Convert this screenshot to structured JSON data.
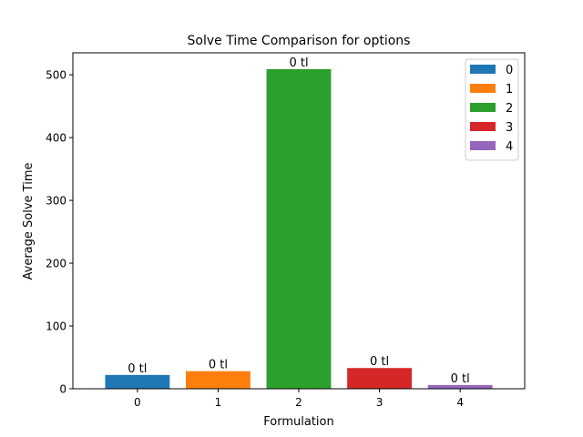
{
  "chart_data": {
    "type": "bar",
    "title": "Solve Time Comparison for options",
    "xlabel": "Formulation",
    "ylabel": "Average Solve Time",
    "categories": [
      "0",
      "1",
      "2",
      "3",
      "4"
    ],
    "values": [
      22,
      28,
      509,
      33,
      6
    ],
    "data_labels": [
      "0 tl",
      "0 tl",
      "0 tl",
      "0 tl",
      "0 tl"
    ],
    "colors": [
      "#1f77b4",
      "#ff7f0e",
      "#2ca02c",
      "#d62728",
      "#9467bd"
    ],
    "ylim": [
      0,
      535
    ],
    "yticks": [
      0,
      100,
      200,
      300,
      400,
      500
    ],
    "grid": false,
    "legend": {
      "position": "top-right",
      "entries": [
        "0",
        "1",
        "2",
        "3",
        "4"
      ]
    }
  }
}
